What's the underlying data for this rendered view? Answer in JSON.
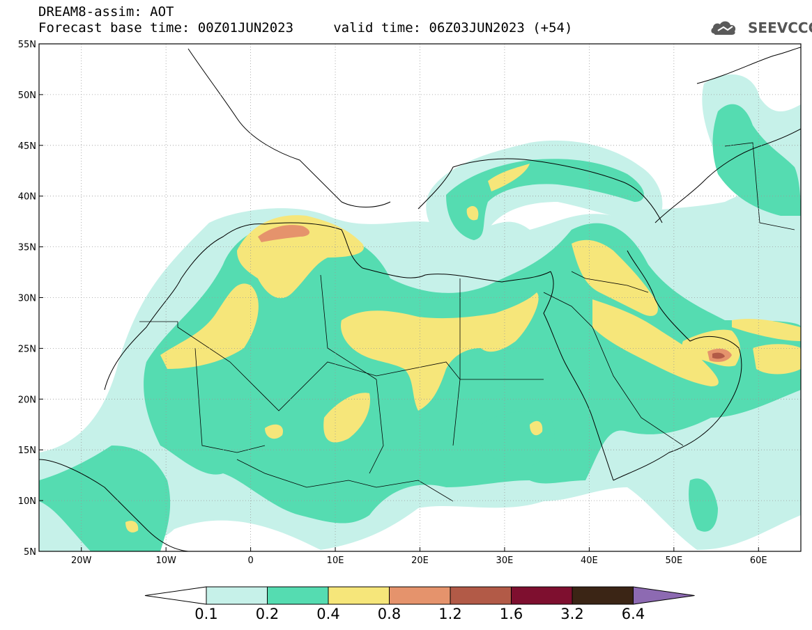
{
  "header": {
    "title_line1": "DREAM8-assim: AOT",
    "title_line2": "Forecast base time: 00Z01JUN2023     valid time: 06Z03JUN2023 (+54)",
    "logo_text": "SEEVCCC",
    "logo_icon": "cloud-logo-icon"
  },
  "map": {
    "lon_range": [
      -25,
      65
    ],
    "lat_range": [
      5,
      55
    ],
    "lon_ticks": [
      {
        "value": -20,
        "label": "20W"
      },
      {
        "value": -10,
        "label": "10W"
      },
      {
        "value": 0,
        "label": "0"
      },
      {
        "value": 10,
        "label": "10E"
      },
      {
        "value": 20,
        "label": "20E"
      },
      {
        "value": 30,
        "label": "30E"
      },
      {
        "value": 40,
        "label": "40E"
      },
      {
        "value": 50,
        "label": "50E"
      },
      {
        "value": 60,
        "label": "60E"
      }
    ],
    "lat_ticks": [
      {
        "value": 5,
        "label": "5N"
      },
      {
        "value": 10,
        "label": "10N"
      },
      {
        "value": 15,
        "label": "15N"
      },
      {
        "value": 20,
        "label": "20N"
      },
      {
        "value": 25,
        "label": "25N"
      },
      {
        "value": 30,
        "label": "30N"
      },
      {
        "value": 35,
        "label": "35N"
      },
      {
        "value": 40,
        "label": "40N"
      },
      {
        "value": 45,
        "label": "45N"
      },
      {
        "value": 50,
        "label": "50N"
      },
      {
        "value": 55,
        "label": "55N"
      }
    ],
    "grid": true,
    "colors": {
      "c01": "#c6f1e9",
      "c02": "#55dcb1",
      "c04": "#f6e67a",
      "c08": "#e5936c",
      "c12": "#b25a47",
      "c16": "#7e0f2f",
      "c32": "#3b2515",
      "c64": "#8d6ab2"
    }
  },
  "colorbar": {
    "labels": [
      "0.1",
      "0.2",
      "0.4",
      "0.8",
      "1.2",
      "1.6",
      "3.2",
      "6.4"
    ],
    "colors": [
      "#c6f1e9",
      "#55dcb1",
      "#f6e67a",
      "#e5936c",
      "#b25a47",
      "#7e0f2f",
      "#3b2515",
      "#8d6ab2"
    ],
    "low_color": "#ffffff"
  }
}
